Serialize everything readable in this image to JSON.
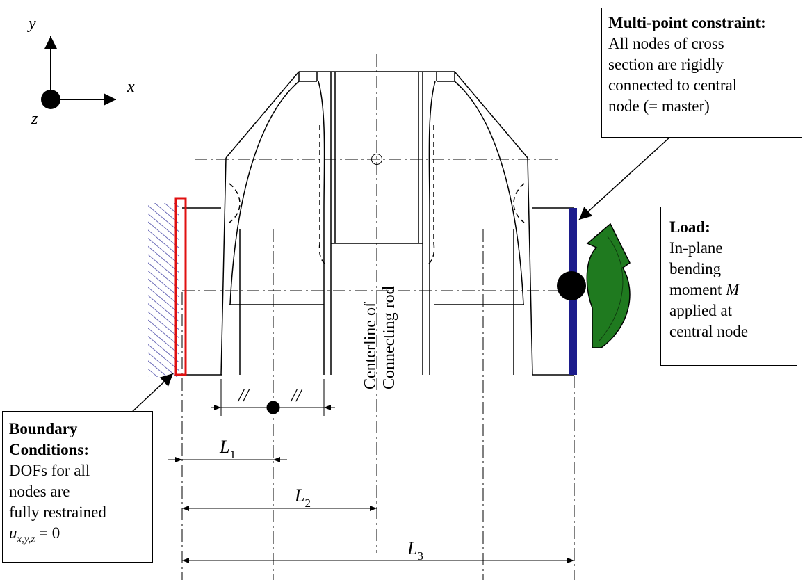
{
  "axes": {
    "y": "y",
    "x": "x",
    "z": "z"
  },
  "centerline": {
    "line1": "Centerline of",
    "line2": "Connecting rod"
  },
  "dim_marks": {
    "left": "//",
    "right": "//"
  },
  "dimensions": {
    "L1": {
      "main": "L",
      "sub": "1"
    },
    "L2": {
      "main": "L",
      "sub": "2"
    },
    "L3": {
      "main": "L",
      "sub": "3"
    }
  },
  "mpc_box": {
    "title": "Multi-point constraint:",
    "lines": [
      "All nodes of cross",
      "section are rigidly",
      "connected to central",
      "node (= master)"
    ]
  },
  "load_box": {
    "title": "Load:",
    "lines": [
      "In-plane",
      "bending"
    ],
    "moment_text": "moment ",
    "moment_symbol": "M",
    "lines2": [
      "applied at",
      "central node"
    ]
  },
  "bc_box": {
    "title_lines": [
      "Boundary",
      "Conditions:"
    ],
    "lines": [
      "DOFs for all",
      "nodes are",
      "fully restrained"
    ],
    "eq_var": "u",
    "eq_sub": "x,y,z",
    "eq_rest": " = 0"
  },
  "colors": {
    "clamp_hatch": "#4a4aa8",
    "boundary_rect": "#e01010",
    "constraint_bar": "#1c1c8c",
    "moment_arrow": "#1f7a1f"
  }
}
